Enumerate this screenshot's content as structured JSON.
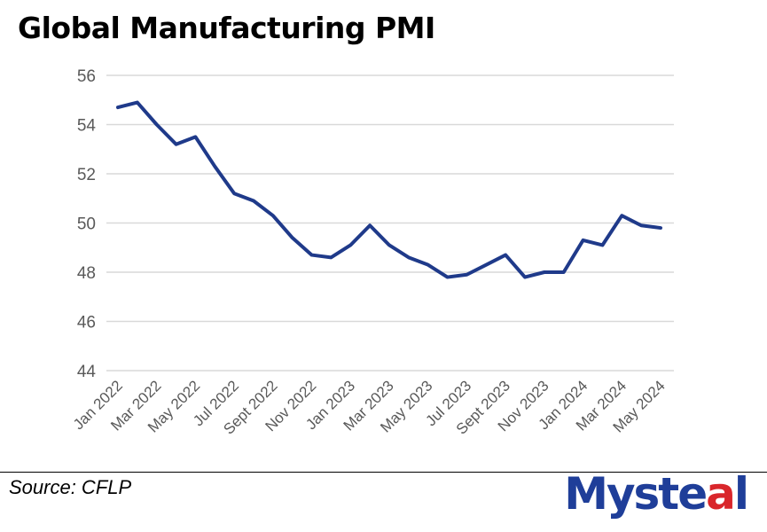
{
  "chart_data": {
    "type": "line",
    "title": "Global Manufacturing PMI",
    "xlabel": "",
    "ylabel": "",
    "ylim": [
      44,
      56
    ],
    "yticks": [
      44,
      46,
      48,
      50,
      52,
      54,
      56
    ],
    "x": [
      "Jan 2022",
      "Feb 2022",
      "Mar 2022",
      "Apr 2022",
      "May 2022",
      "Jun 2022",
      "Jul 2022",
      "Aug 2022",
      "Sept 2022",
      "Oct 2022",
      "Nov 2022",
      "Dec 2022",
      "Jan 2023",
      "Feb 2023",
      "Mar 2023",
      "Apr 2023",
      "May 2023",
      "Jun 2023",
      "Jul 2023",
      "Aug 2023",
      "Sept 2023",
      "Oct 2023",
      "Nov 2023",
      "Dec 2023",
      "Jan 2024",
      "Feb 2024",
      "Mar 2024",
      "Apr 2024",
      "May 2024"
    ],
    "xtick_labels": [
      "Jan 2022",
      "Mar 2022",
      "May 2022",
      "Jul 2022",
      "Sept 2022",
      "Nov 2022",
      "Jan 2023",
      "Mar 2023",
      "May 2023",
      "Jul 2023",
      "Sept 2023",
      "Nov 2023",
      "Jan 2024",
      "Mar 2024",
      "May 2024"
    ],
    "series": [
      {
        "name": "Global Manufacturing PMI",
        "color": "#1f3a8a",
        "values": [
          54.7,
          54.9,
          54.0,
          53.2,
          53.5,
          52.3,
          51.2,
          50.9,
          50.3,
          49.4,
          48.7,
          48.6,
          49.1,
          49.9,
          49.1,
          48.6,
          48.3,
          47.8,
          47.9,
          48.3,
          48.7,
          47.8,
          48.0,
          48.0,
          49.3,
          49.1,
          50.3,
          49.9,
          49.8
        ]
      }
    ],
    "grid": true,
    "legend": "none"
  },
  "footer": {
    "source": "Source: CFLP",
    "logo_main": "Myste",
    "logo_accent": "a",
    "logo_end": "l"
  }
}
